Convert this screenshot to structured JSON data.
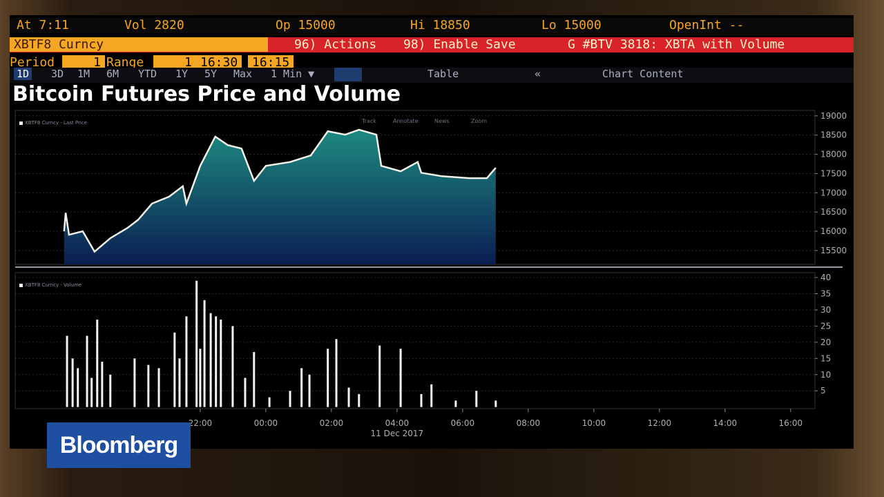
{
  "header": {
    "at": "At 7:11",
    "vol": "Vol 2820",
    "op": "Op 15000",
    "hi": "Hi 18850",
    "lo": "Lo 15000",
    "open_int": "OpenInt --",
    "ticker": "XBTF8 Curncy",
    "actions": "96) Actions",
    "enable_save": "98) Enable Save",
    "function": "G #BTV 3818: XBTA with Volume",
    "period_label": "Period",
    "period_value": "1",
    "range_label": "Range",
    "range_value": "1",
    "range_start": "16:30",
    "range_end": "16:15"
  },
  "toolbar": {
    "tabs": [
      "1D",
      "3D",
      "1M",
      "6M",
      "YTD",
      "1Y",
      "5Y",
      "Max",
      "1 Min ▼"
    ],
    "table": "Table",
    "chart_content": "Chart Content",
    "tools": [
      "Track",
      "Annotate",
      "News",
      "Zoom"
    ]
  },
  "logo": "Bloomberg",
  "chart_data": [
    {
      "type": "area",
      "title": "Bitcoin Futures Price and Volume",
      "legend": "XBTF8 Curncy - Last Price",
      "color": "#f2f2e6",
      "x": [
        -6.15,
        -6.1,
        -6.0,
        -5.58,
        -5.22,
        -4.74,
        -4.21,
        -3.89,
        -3.47,
        -2.95,
        -2.53,
        -2.42,
        -2.0,
        -1.54,
        -1.16,
        -0.74,
        -0.36,
        0,
        0.74,
        1.37,
        1.89,
        2.42,
        2.84,
        3.37,
        3.52,
        4.11,
        4.63,
        4.74,
        5.37,
        6.21,
        6.74,
        7.01
      ],
      "values": [
        16000,
        16480,
        15910,
        16000,
        15470,
        15820,
        16090,
        16300,
        16720,
        16900,
        17170,
        16720,
        17700,
        18460,
        18240,
        18150,
        17310,
        17700,
        17800,
        17970,
        18600,
        18510,
        18640,
        18510,
        17700,
        17560,
        17800,
        17520,
        17430,
        17380,
        17380,
        17650
      ],
      "xlim": [
        -7.64,
        16.74
      ],
      "ylim": [
        15140,
        19140
      ],
      "yticks": [
        15500,
        16000,
        16500,
        17000,
        17500,
        18000,
        18500,
        19000
      ],
      "grid": true
    },
    {
      "type": "bar",
      "legend": "XBTF8 Curncy - Volume",
      "color": "#f4f4f4",
      "x": [
        -6.06,
        -5.89,
        -5.73,
        -5.45,
        -5.31,
        -5.14,
        -4.99,
        -4.74,
        -4.0,
        -3.58,
        -3.26,
        -2.78,
        -2.63,
        -2.42,
        -2.11,
        -2.0,
        -1.87,
        -1.68,
        -1.52,
        -1.37,
        -1.01,
        -0.63,
        -0.36,
        0.11,
        0.74,
        1.09,
        1.33,
        1.89,
        2.15,
        2.53,
        2.84,
        3.47,
        4.11,
        4.74,
        5.05,
        5.79,
        6.42,
        7.01
      ],
      "values": [
        22,
        15,
        12,
        22,
        9,
        27,
        14,
        10,
        15,
        13,
        12,
        23,
        15,
        28,
        39,
        18,
        33,
        29,
        28,
        27,
        25,
        9,
        17,
        3,
        5,
        12,
        10,
        18,
        21,
        6,
        4,
        19,
        18,
        4,
        7,
        2,
        5,
        2
      ],
      "xlim": [
        -7.64,
        16.74
      ],
      "xticks": [
        {
          "value": -2,
          "label": "22:00"
        },
        {
          "value": 0,
          "label": "00:00"
        },
        {
          "value": 2,
          "label": "02:00"
        },
        {
          "value": 4,
          "label": "04:00"
        },
        {
          "value": 6,
          "label": "06:00"
        },
        {
          "value": 8,
          "label": "08:00"
        },
        {
          "value": 10,
          "label": "10:00"
        },
        {
          "value": 12,
          "label": "12:00"
        },
        {
          "value": 14,
          "label": "14:00"
        },
        {
          "value": 16,
          "label": "16:00"
        }
      ],
      "date_label": "11 Dec 2017",
      "ylim": [
        -0.5,
        41.5
      ],
      "yticks": [
        5,
        10,
        15,
        20,
        25,
        30,
        35,
        40
      ],
      "grid": true
    }
  ]
}
